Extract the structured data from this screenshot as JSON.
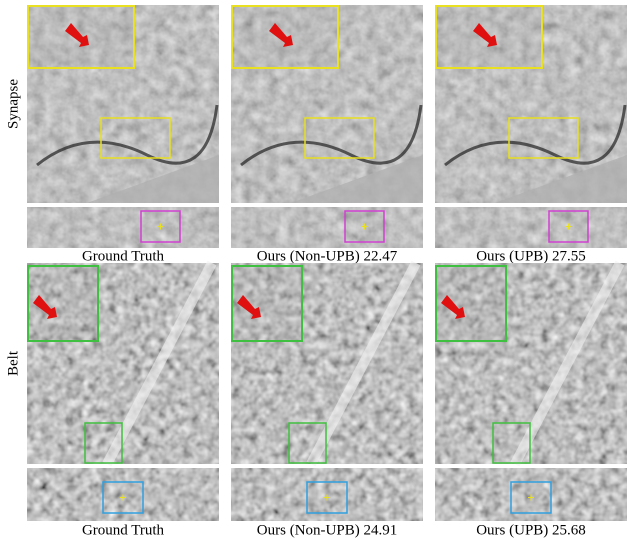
{
  "rows": [
    {
      "label": "Synapse",
      "captions": [
        "Ground Truth",
        "Ours (Non-UPB) 22.47",
        "Ours (UPB) 27.55"
      ]
    },
    {
      "label": "Belt",
      "captions": [
        "Ground Truth",
        "Ours (Non-UPB) 24.91",
        "Ours (UPB) 25.68"
      ]
    }
  ]
}
